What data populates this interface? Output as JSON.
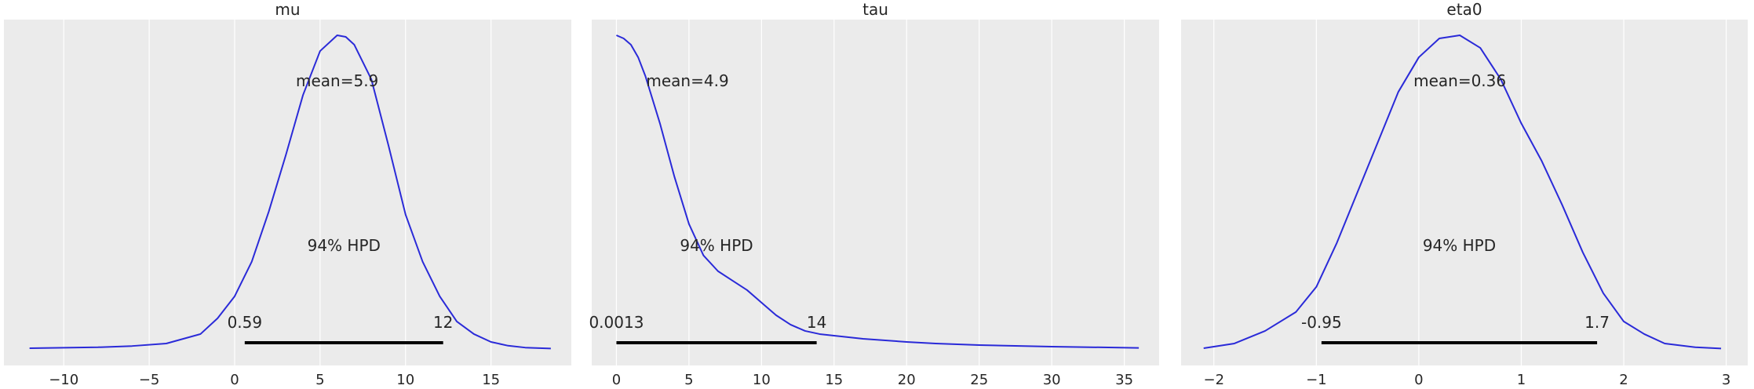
{
  "chart_data": [
    {
      "type": "density",
      "title": "mu",
      "xlabel": "",
      "ylabel": "",
      "xlim": [
        -13.5,
        19.7
      ],
      "ylim": [
        0,
        1
      ],
      "grid": true,
      "xticks": [
        -10,
        -5,
        0,
        5,
        10,
        15
      ],
      "xtick_labels": [
        "−10",
        "−5",
        "0",
        "5",
        "10",
        "15"
      ],
      "curve_color": "#2a2ad8",
      "background": "#ebebeb",
      "x": [
        -12,
        -8,
        -6,
        -4,
        -2,
        -1,
        0,
        1,
        2,
        3,
        4,
        5,
        6,
        6.5,
        7,
        8,
        9,
        10,
        11,
        12,
        13,
        14,
        15,
        16,
        17,
        18.5
      ],
      "y": [
        0.005,
        0.008,
        0.012,
        0.02,
        0.05,
        0.1,
        0.17,
        0.28,
        0.44,
        0.62,
        0.81,
        0.95,
        1.0,
        0.995,
        0.97,
        0.86,
        0.65,
        0.43,
        0.28,
        0.17,
        0.09,
        0.05,
        0.025,
        0.013,
        0.007,
        0.004
      ],
      "annotations": {
        "mean_label": "mean=5.9",
        "hpd_label": "94% HPD",
        "hpd_low": 0.59,
        "hpd_high": 12.2,
        "hpd_low_label": "0.59",
        "hpd_high_label": "12"
      }
    },
    {
      "type": "density",
      "title": "tau",
      "xlabel": "",
      "ylabel": "",
      "xlim": [
        -1.7,
        37.4
      ],
      "ylim": [
        0,
        1
      ],
      "grid": true,
      "xticks": [
        0,
        5,
        10,
        15,
        20,
        25,
        30,
        35
      ],
      "xtick_labels": [
        "0",
        "5",
        "10",
        "15",
        "20",
        "25",
        "30",
        "35"
      ],
      "curve_color": "#2a2ad8",
      "background": "#ebebeb",
      "x": [
        0,
        0.5,
        1,
        1.5,
        2,
        3,
        4,
        5,
        6,
        7,
        8,
        9,
        10,
        11,
        12,
        13,
        14,
        15,
        17,
        20,
        22,
        25,
        30,
        36
      ],
      "y": [
        1.0,
        0.99,
        0.97,
        0.93,
        0.87,
        0.72,
        0.55,
        0.4,
        0.3,
        0.25,
        0.22,
        0.19,
        0.15,
        0.11,
        0.08,
        0.06,
        0.05,
        0.045,
        0.035,
        0.025,
        0.02,
        0.015,
        0.01,
        0.006
      ],
      "annotations": {
        "mean_label": "mean=4.9",
        "hpd_label": "94% HPD",
        "hpd_low": 0.0013,
        "hpd_high": 13.8,
        "hpd_low_label": "0.0013",
        "hpd_high_label": "14"
      }
    },
    {
      "type": "density",
      "title": "eta0",
      "xlabel": "",
      "ylabel": "",
      "xlim": [
        -2.32,
        3.21
      ],
      "ylim": [
        0,
        1
      ],
      "grid": true,
      "xticks": [
        -2,
        -1,
        0,
        1,
        2,
        3
      ],
      "xtick_labels": [
        "−2",
        "−1",
        "0",
        "1",
        "2",
        "3"
      ],
      "curve_color": "#2a2ad8",
      "background": "#ebebeb",
      "x": [
        -2.1,
        -1.8,
        -1.5,
        -1.2,
        -1.0,
        -0.8,
        -0.6,
        -0.4,
        -0.2,
        0,
        0.2,
        0.4,
        0.6,
        0.8,
        1.0,
        1.2,
        1.4,
        1.6,
        1.8,
        2.0,
        2.2,
        2.4,
        2.7,
        2.95
      ],
      "y": [
        0.005,
        0.02,
        0.06,
        0.12,
        0.2,
        0.34,
        0.5,
        0.66,
        0.82,
        0.93,
        0.99,
        1.0,
        0.96,
        0.86,
        0.72,
        0.6,
        0.46,
        0.31,
        0.18,
        0.09,
        0.05,
        0.02,
        0.008,
        0.004
      ],
      "annotations": {
        "mean_label": "mean=0.36",
        "hpd_label": "94% HPD",
        "hpd_low": -0.95,
        "hpd_high": 1.74,
        "hpd_low_label": "-0.95",
        "hpd_high_label": "1.7"
      }
    }
  ]
}
